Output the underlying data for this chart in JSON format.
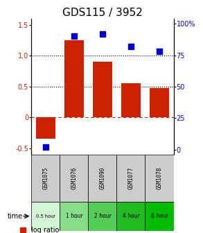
{
  "title": "GDS115 / 3952",
  "samples": [
    "GSM1075",
    "GSM1076",
    "GSM1090",
    "GSM1077",
    "GSM1078"
  ],
  "time_labels": [
    "0.5 hour",
    "1 hour",
    "2 hour",
    "4 hour",
    "6 hour"
  ],
  "log_ratios": [
    -0.35,
    1.25,
    0.9,
    0.55,
    0.47
  ],
  "percentile_ranks": [
    2.0,
    90.0,
    92.0,
    82.0,
    78.0
  ],
  "bar_color": "#cc2200",
  "dot_color": "#0000cc",
  "ylim_left": [
    -0.6,
    1.6
  ],
  "ylim_right": [
    -3.84,
    104.0
  ],
  "yticks_left": [
    -0.5,
    0.0,
    0.5,
    1.0,
    1.5
  ],
  "yticks_right": [
    0,
    25,
    50,
    75,
    100
  ],
  "hlines_dotted": [
    0.5,
    1.0
  ],
  "hline_zero_color": "#cc2200",
  "hline_zero_style": "-.",
  "time_colors": [
    "#d4f5d4",
    "#88dd88",
    "#55cc55",
    "#22bb22",
    "#00bb00"
  ],
  "sample_bg_color": "#cccccc",
  "bar_width": 0.7,
  "dot_size": 40,
  "title_fontsize": 11,
  "tick_fontsize": 7,
  "legend_fontsize": 7
}
